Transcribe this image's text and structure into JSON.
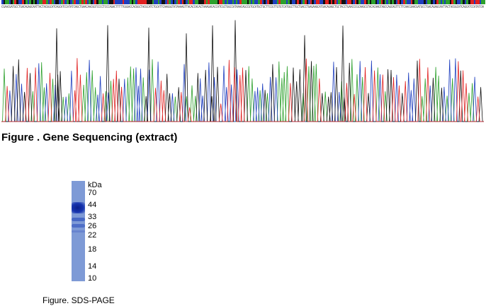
{
  "figures": {
    "sequencing": {
      "caption": "Figure . Gene Sequencing (extract)",
      "base_colors": {
        "A": "#2ca02c",
        "C": "#1f3fbf",
        "G": "#111111",
        "T": "#e02020"
      }
    },
    "sds_page": {
      "caption": "Figure. SDS-PAGE",
      "unit_label": "kDa",
      "markers": [
        "70",
        "44",
        "33",
        "26",
        "22",
        "18",
        "14",
        "10"
      ]
    }
  }
}
